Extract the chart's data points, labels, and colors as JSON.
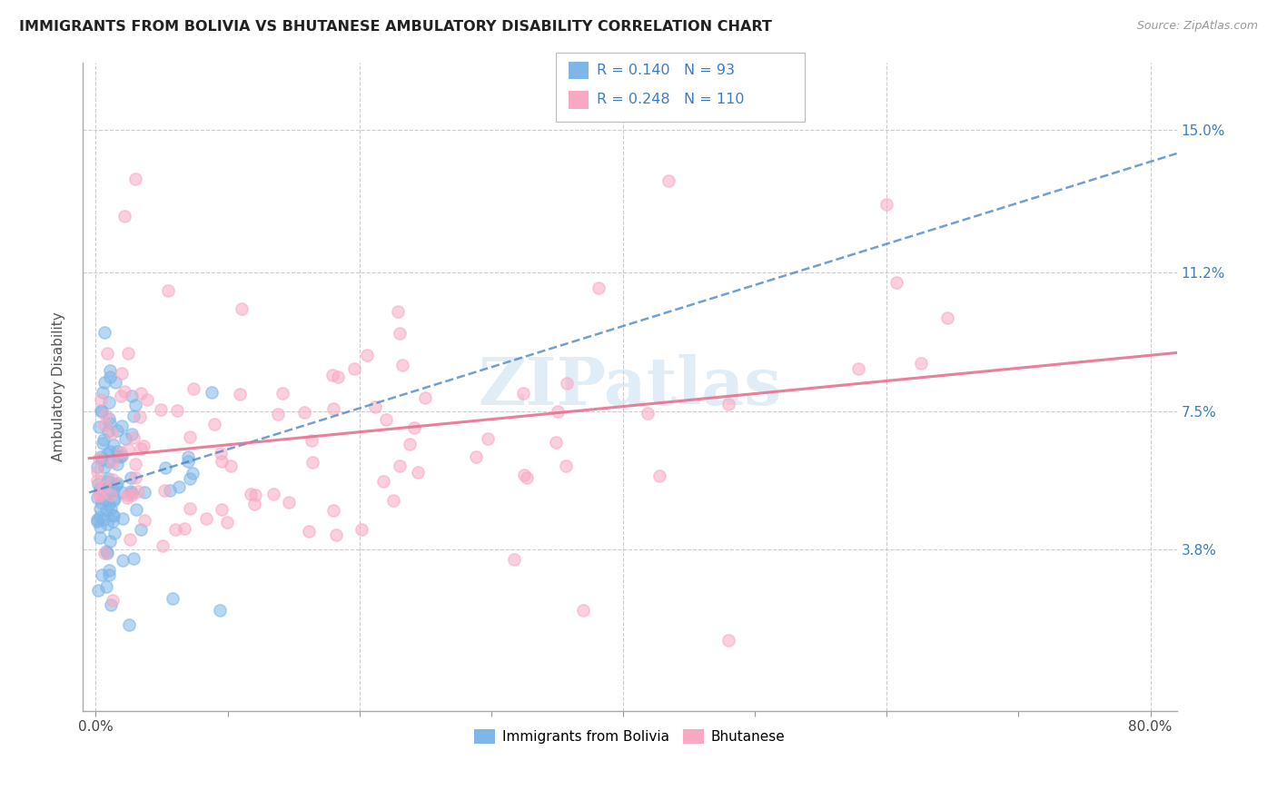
{
  "title": "IMMIGRANTS FROM BOLIVIA VS BHUTANESE AMBULATORY DISABILITY CORRELATION CHART",
  "source": "Source: ZipAtlas.com",
  "ylabel": "Ambulatory Disability",
  "yticks": [
    "3.8%",
    "7.5%",
    "11.2%",
    "15.0%"
  ],
  "ytick_vals": [
    0.038,
    0.075,
    0.112,
    0.15
  ],
  "xlim": [
    0.0,
    0.8
  ],
  "ylim": [
    -0.005,
    0.168
  ],
  "legend_label1": "Immigrants from Bolivia",
  "legend_label2": "Bhutanese",
  "R1": "0.140",
  "N1": "93",
  "R2": "0.248",
  "N2": "110",
  "color_blue": "#7EB6E8",
  "color_pink": "#F9A8C2",
  "color_blue_dark": "#4080C0",
  "color_pink_dark": "#E87090",
  "color_blue_text": "#3A7EC6",
  "color_pink_text": "#E8607A",
  "watermark_color": "#C8DDF0",
  "grid_color": "#CCCCCC",
  "spine_color": "#AAAAAA"
}
